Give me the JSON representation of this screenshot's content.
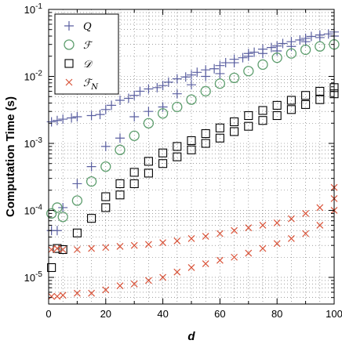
{
  "chart_data": {
    "type": "scatter",
    "xlabel": "d",
    "ylabel": "Computation Time (s)",
    "xlim": [
      0,
      100
    ],
    "ylim": [
      4e-06,
      0.1
    ],
    "yscale": "log",
    "grid": true,
    "legend_position": "top-left",
    "x_ticks": [
      "0",
      "20",
      "40",
      "60",
      "80",
      "100"
    ],
    "y_ticks": [
      {
        "base": "10",
        "exp": "-5",
        "value": 1e-05
      },
      {
        "base": "10",
        "exp": "-4",
        "value": 0.0001
      },
      {
        "base": "10",
        "exp": "-3",
        "value": 0.001
      },
      {
        "base": "10",
        "exp": "-2",
        "value": 0.01
      },
      {
        "base": "10",
        "exp": "-1",
        "value": 0.1
      }
    ],
    "series": [
      {
        "name": "Q",
        "marker": "plus",
        "color": "#5a5fa0",
        "points": [
          [
            1,
            5e-05
          ],
          [
            3,
            5e-05
          ],
          [
            5,
            0.00011
          ],
          [
            10,
            0.00025
          ],
          [
            15,
            0.00045
          ],
          [
            20,
            0.0009
          ],
          [
            25,
            0.0012
          ],
          [
            30,
            0.0025
          ],
          [
            35,
            0.003
          ],
          [
            40,
            0.0035
          ],
          [
            45,
            0.0055
          ],
          [
            50,
            0.0075
          ],
          [
            55,
            0.01
          ],
          [
            60,
            0.011
          ],
          [
            65,
            0.016
          ],
          [
            70,
            0.02
          ],
          [
            75,
            0.022
          ],
          [
            80,
            0.024
          ],
          [
            85,
            0.028
          ],
          [
            90,
            0.033
          ],
          [
            95,
            0.038
          ],
          [
            100,
            0.04
          ],
          [
            1,
            0.0021
          ],
          [
            3,
            0.0022
          ],
          [
            5,
            0.0023
          ],
          [
            8,
            0.0024
          ],
          [
            10,
            0.0025
          ],
          [
            15,
            0.0026
          ],
          [
            18,
            0.0027
          ],
          [
            20,
            0.0032
          ],
          [
            22,
            0.0037
          ],
          [
            25,
            0.0044
          ],
          [
            28,
            0.0047
          ],
          [
            30,
            0.0052
          ],
          [
            32,
            0.006
          ],
          [
            35,
            0.0065
          ],
          [
            38,
            0.0068
          ],
          [
            40,
            0.0073
          ],
          [
            42,
            0.0082
          ],
          [
            45,
            0.0092
          ],
          [
            48,
            0.0098
          ],
          [
            50,
            0.0105
          ],
          [
            52,
            0.0115
          ],
          [
            55,
            0.0125
          ],
          [
            58,
            0.013
          ],
          [
            60,
            0.0145
          ],
          [
            62,
            0.016
          ],
          [
            65,
            0.018
          ],
          [
            68,
            0.019
          ],
          [
            70,
            0.022
          ],
          [
            72,
            0.023
          ],
          [
            75,
            0.0255
          ],
          [
            78,
            0.027
          ],
          [
            80,
            0.0285
          ],
          [
            82,
            0.031
          ],
          [
            85,
            0.033
          ],
          [
            88,
            0.035
          ],
          [
            90,
            0.037
          ],
          [
            92,
            0.0395
          ],
          [
            95,
            0.0415
          ],
          [
            98,
            0.043
          ],
          [
            100,
            0.046
          ]
        ]
      },
      {
        "name": "F",
        "marker": "circle",
        "color": "#5e9e6e",
        "points": [
          [
            1,
            9e-05
          ],
          [
            3,
            0.00011
          ],
          [
            5,
            8e-05
          ],
          [
            10,
            0.00014
          ],
          [
            15,
            0.00027
          ],
          [
            20,
            0.00045
          ],
          [
            25,
            0.0008
          ],
          [
            30,
            0.0013
          ],
          [
            35,
            0.002
          ],
          [
            40,
            0.0028
          ],
          [
            45,
            0.0035
          ],
          [
            50,
            0.0045
          ],
          [
            55,
            0.006
          ],
          [
            60,
            0.0078
          ],
          [
            65,
            0.0095
          ],
          [
            70,
            0.012
          ],
          [
            75,
            0.015
          ],
          [
            80,
            0.019
          ],
          [
            85,
            0.022
          ],
          [
            90,
            0.025
          ],
          [
            95,
            0.028
          ],
          [
            100,
            0.03
          ]
        ]
      },
      {
        "name": "D",
        "marker": "square",
        "color": "#000000",
        "points": [
          [
            1,
            1.4e-05
          ],
          [
            3,
            2.7e-05
          ],
          [
            5,
            2.6e-05
          ],
          [
            10,
            4.6e-05
          ],
          [
            15,
            7.6e-05
          ],
          [
            20,
            0.00011
          ],
          [
            25,
            0.00017
          ],
          [
            30,
            0.00025
          ],
          [
            35,
            0.00036
          ],
          [
            40,
            0.0005
          ],
          [
            45,
            0.00063
          ],
          [
            50,
            0.0008
          ],
          [
            55,
            0.001
          ],
          [
            60,
            0.0012
          ],
          [
            65,
            0.0015
          ],
          [
            70,
            0.0018
          ],
          [
            75,
            0.0022
          ],
          [
            80,
            0.0026
          ],
          [
            85,
            0.0032
          ],
          [
            90,
            0.0038
          ],
          [
            95,
            0.0045
          ],
          [
            100,
            0.0055
          ],
          [
            20,
            0.00016
          ],
          [
            25,
            0.00025
          ],
          [
            30,
            0.00037
          ],
          [
            35,
            0.00054
          ],
          [
            40,
            0.00072
          ],
          [
            45,
            0.0009
          ],
          [
            50,
            0.0011
          ],
          [
            55,
            0.0014
          ],
          [
            60,
            0.0017
          ],
          [
            65,
            0.0021
          ],
          [
            70,
            0.0026
          ],
          [
            75,
            0.0031
          ],
          [
            80,
            0.0037
          ],
          [
            85,
            0.0044
          ],
          [
            90,
            0.0052
          ],
          [
            95,
            0.006
          ],
          [
            100,
            0.0068
          ]
        ]
      },
      {
        "name": "FN",
        "marker": "x",
        "color": "#d9543a",
        "points": [
          [
            1,
            5.2e-06
          ],
          [
            3,
            5.2e-06
          ],
          [
            5,
            5.4e-06
          ],
          [
            10,
            5.8e-06
          ],
          [
            15,
            5.8e-06
          ],
          [
            20,
            6.5e-06
          ],
          [
            25,
            7.5e-06
          ],
          [
            30,
            8e-06
          ],
          [
            35,
            9e-06
          ],
          [
            40,
            1e-05
          ],
          [
            45,
            1.2e-05
          ],
          [
            50,
            1.4e-05
          ],
          [
            55,
            1.6e-05
          ],
          [
            60,
            1.8e-05
          ],
          [
            65,
            2e-05
          ],
          [
            70,
            2.3e-05
          ],
          [
            75,
            2.7e-05
          ],
          [
            80,
            3.2e-05
          ],
          [
            85,
            3.8e-05
          ],
          [
            90,
            4.5e-05
          ],
          [
            95,
            6e-05
          ],
          [
            100,
            0.0001
          ],
          [
            1,
            2.6e-05
          ],
          [
            3,
            2.7e-05
          ],
          [
            5,
            2.6e-05
          ],
          [
            10,
            2.6e-05
          ],
          [
            15,
            2.7e-05
          ],
          [
            20,
            2.8e-05
          ],
          [
            25,
            2.9e-05
          ],
          [
            30,
            3e-05
          ],
          [
            35,
            3.1e-05
          ],
          [
            40,
            3.3e-05
          ],
          [
            45,
            3.5e-05
          ],
          [
            50,
            3.8e-05
          ],
          [
            55,
            4.1e-05
          ],
          [
            60,
            4.5e-05
          ],
          [
            65,
            5e-05
          ],
          [
            70,
            5.5e-05
          ],
          [
            75,
            6e-05
          ],
          [
            80,
            6.5e-05
          ],
          [
            85,
            7.5e-05
          ],
          [
            90,
            9e-05
          ],
          [
            95,
            0.00011
          ],
          [
            100,
            0.00015
          ],
          [
            100,
            0.00022
          ]
        ]
      }
    ],
    "legend": [
      {
        "series": "Q",
        "label": "Q"
      },
      {
        "series": "F",
        "label": "ℱ"
      },
      {
        "series": "D",
        "label": "𝒟"
      },
      {
        "series": "FN",
        "label": "ℱ",
        "subscript": "N"
      }
    ]
  }
}
